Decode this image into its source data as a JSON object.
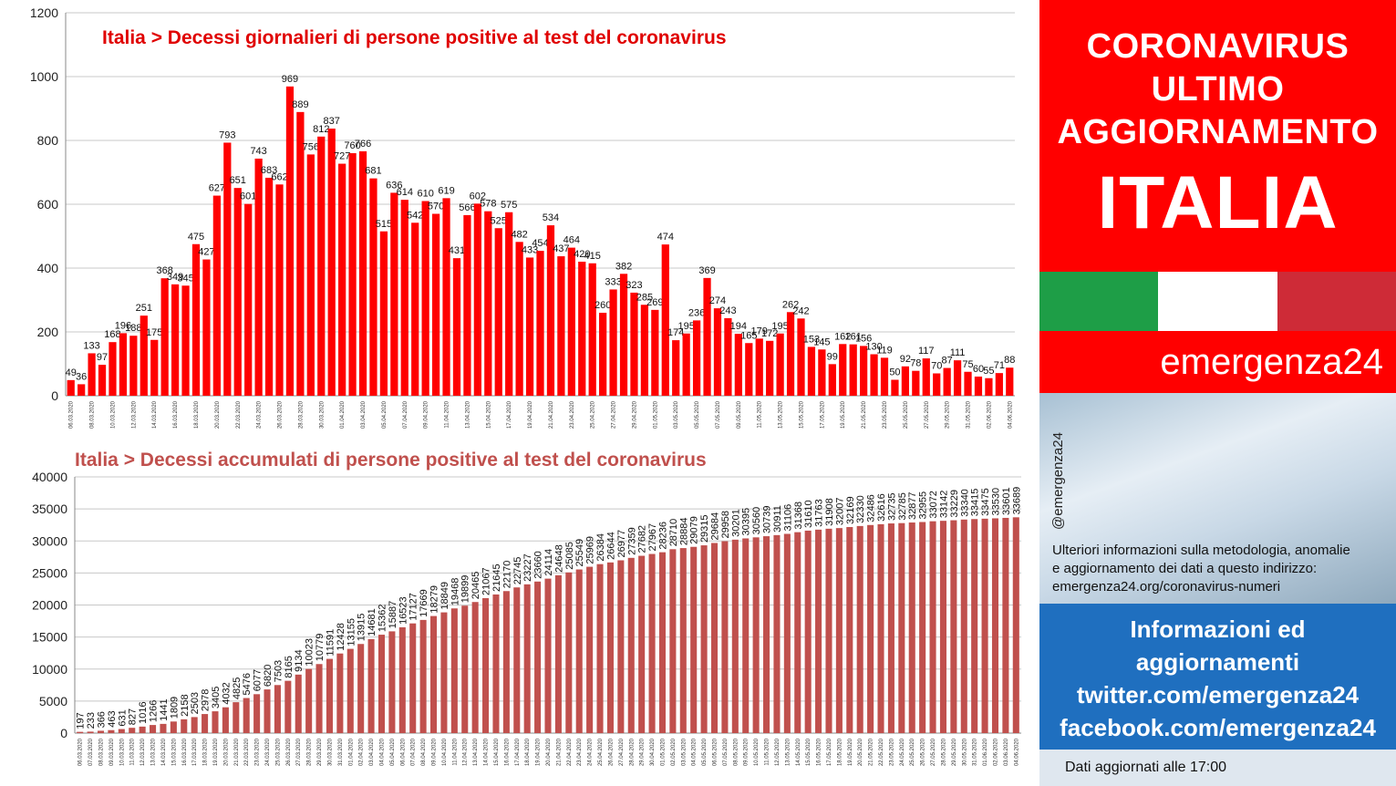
{
  "colors": {
    "red_bar": "#ff0000",
    "cum_bar": "#c0504d",
    "title_top": "#e00000",
    "title_bottom": "#c0504d",
    "panel_red": "#ff0000",
    "social_blue": "#1f6fbf",
    "flag_green": "#1e9e47",
    "flag_white": "#ffffff",
    "flag_red": "#ce2b37"
  },
  "panel": {
    "headline": [
      "CORONAVIRUS",
      "ULTIMO",
      "AGGIORNAMENTO"
    ],
    "country": "ITALIA",
    "brand": "emergenza24",
    "handle": "@emergenza24",
    "info": [
      "Ulteriori informazioni sulla metodologia, anomalie",
      "e aggiornamento dei dati a questo indirizzo:",
      "emergenza24.org/coronavirus-numeri"
    ],
    "social": [
      "Informazioni ed",
      "aggiornamenti",
      "twitter.com/emergenza24",
      "facebook.com/emergenza24"
    ],
    "update": "Dati aggiornati alle 17:00"
  },
  "chart_data": [
    {
      "type": "bar",
      "title": "Italia > Decessi giornalieri di persone positive al test del coronavirus",
      "ylim": [
        0,
        1200
      ],
      "yticks": [
        0,
        200,
        400,
        600,
        800,
        1000,
        1200
      ],
      "grid": true,
      "start_date": "06.03.2020",
      "xtick_every": 2,
      "values": [
        49,
        36,
        133,
        97,
        168,
        196,
        188,
        251,
        175,
        368,
        349,
        345,
        475,
        427,
        627,
        793,
        651,
        601,
        743,
        683,
        662,
        969,
        889,
        756,
        812,
        837,
        727,
        760,
        766,
        681,
        515,
        636,
        614,
        542,
        610,
        570,
        619,
        431,
        566,
        602,
        578,
        525,
        575,
        482,
        433,
        454,
        534,
        437,
        464,
        420,
        415,
        260,
        333,
        382,
        323,
        285,
        269,
        474,
        174,
        195,
        236,
        369,
        274,
        243,
        194,
        165,
        179,
        172,
        195,
        262,
        242,
        153,
        145,
        99,
        162,
        161,
        156,
        130,
        119,
        50,
        92,
        78,
        117,
        70,
        87,
        111,
        75,
        60,
        55,
        71,
        88
      ]
    },
    {
      "type": "bar",
      "title": "Italia > Decessi accumulati di persone positive al test del coronavirus",
      "ylim": [
        0,
        40000
      ],
      "yticks": [
        0,
        5000,
        10000,
        15000,
        20000,
        25000,
        30000,
        35000,
        40000
      ],
      "grid": true,
      "start_date": "06.03.2020",
      "xtick_every": 1,
      "values": [
        197,
        233,
        366,
        463,
        631,
        827,
        1016,
        1266,
        1441,
        1809,
        2158,
        2503,
        2978,
        3405,
        4032,
        4825,
        5476,
        6077,
        6820,
        7503,
        8165,
        9134,
        10023,
        10779,
        11591,
        12428,
        13155,
        13915,
        14681,
        15362,
        15887,
        16523,
        17127,
        17669,
        18279,
        18849,
        19468,
        19899,
        20465,
        21067,
        21645,
        22170,
        22745,
        23227,
        23660,
        24114,
        24648,
        25085,
        25549,
        25969,
        26384,
        26644,
        26977,
        27359,
        27682,
        27967,
        28236,
        28710,
        28884,
        29079,
        29315,
        29684,
        29958,
        30201,
        30395,
        30560,
        30739,
        30911,
        31106,
        31368,
        31610,
        31763,
        31908,
        32007,
        32169,
        32330,
        32486,
        32616,
        32735,
        32785,
        32877,
        32955,
        33072,
        33142,
        33229,
        33340,
        33415,
        33475,
        33530,
        33601,
        33689
      ]
    }
  ]
}
